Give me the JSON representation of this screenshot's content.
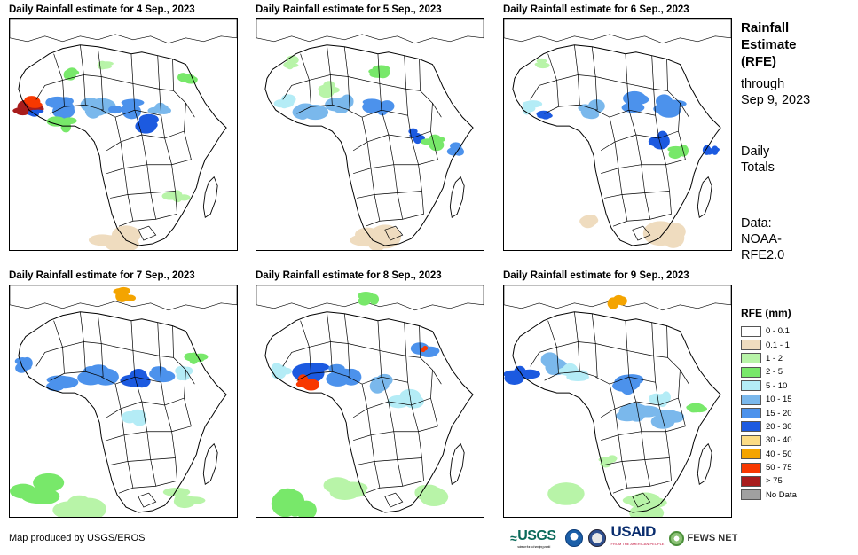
{
  "panels": [
    {
      "title": "Daily Rainfall estimate for 4 Sep., 2023",
      "total_rain_coverage": "high"
    },
    {
      "title": "Daily Rainfall estimate for 5 Sep., 2023",
      "total_rain_coverage": "medium"
    },
    {
      "title": "Daily Rainfall estimate for 6 Sep., 2023",
      "total_rain_coverage": "medium"
    },
    {
      "title": "Daily Rainfall estimate for 7 Sep., 2023",
      "total_rain_coverage": "high"
    },
    {
      "title": "Daily Rainfall estimate for 8 Sep., 2023",
      "total_rain_coverage": "high"
    },
    {
      "title": "Daily Rainfall estimate for 9 Sep., 2023",
      "total_rain_coverage": "high"
    }
  ],
  "sidebar": {
    "title_line1": "Rainfall",
    "title_line2": "Estimate",
    "title_line3": "(RFE)",
    "through": "through",
    "date": "Sep 9, 2023",
    "totals_line1": "Daily",
    "totals_line2": "Totals",
    "data_line1": "Data:",
    "data_line2": "NOAA-",
    "data_line3": "RFE2.0"
  },
  "legend": {
    "title": "RFE (mm)",
    "items": [
      {
        "label": "0 - 0.1",
        "color": "#ffffff"
      },
      {
        "label": "0.1 - 1",
        "color": "#efdcbf"
      },
      {
        "label": "1 - 2",
        "color": "#b8f4a8"
      },
      {
        "label": "2 - 5",
        "color": "#78e86a"
      },
      {
        "label": "5 - 10",
        "color": "#b4ecf6"
      },
      {
        "label": "10 - 15",
        "color": "#7ab8ec"
      },
      {
        "label": "15 - 20",
        "color": "#4c92ec"
      },
      {
        "label": "20 - 30",
        "color": "#1c5ae0"
      },
      {
        "label": "30 - 40",
        "color": "#fcdc84"
      },
      {
        "label": "40 - 50",
        "color": "#f4a400"
      },
      {
        "label": "50 - 75",
        "color": "#f83800"
      },
      {
        "label": "> 75",
        "color": "#a81c1c"
      },
      {
        "label": "No Data",
        "color": "#a0a0a0"
      }
    ]
  },
  "footer": {
    "credit": "Map produced by USGS/EROS",
    "logo_usgs": "USGS",
    "logo_usgs_tag": "science for a changing world",
    "logo_usaid": "USAID",
    "logo_usaid_tag": "FROM THE AMERICAN PEOPLE",
    "logo_fews": "FEWS NET"
  }
}
